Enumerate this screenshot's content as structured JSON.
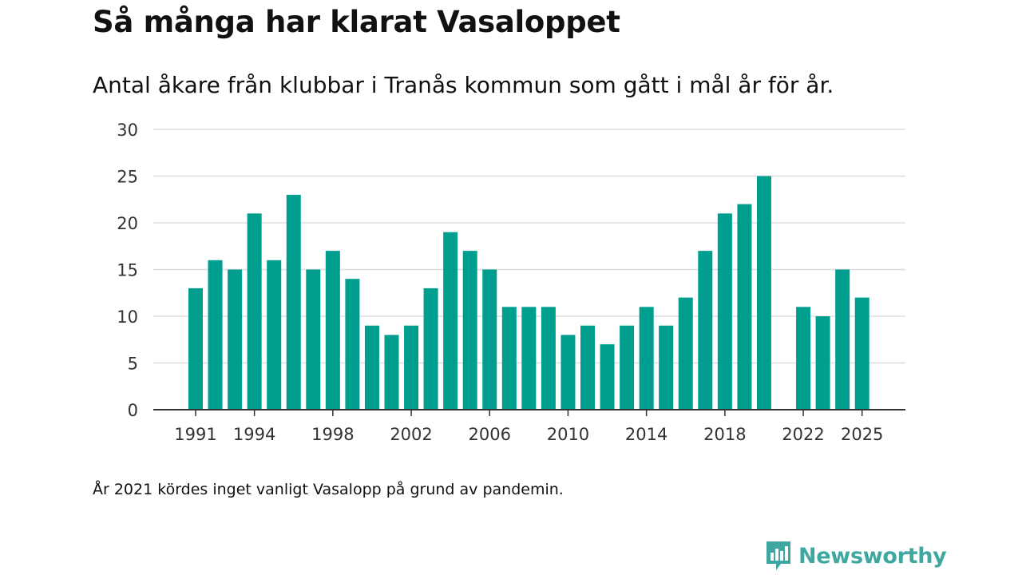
{
  "title": "Så många har klarat Vasaloppet",
  "subtitle": "Antal åkare från klubbar i Tranås kommun som gått i mål år för år.",
  "note": "År 2021 kördes inget vanligt Vasalopp på grund av pandemin.",
  "brand": {
    "name": "Newsworthy",
    "icon": "newsworthy-logo-icon",
    "color": "#3ea8a0"
  },
  "colors": {
    "bar": "#009e8f",
    "grid": "#dddddd",
    "axis": "#333333"
  },
  "chart_data": {
    "type": "bar",
    "title": "Så många har klarat Vasaloppet",
    "xlabel": "",
    "ylabel": "",
    "ylim": [
      0,
      30
    ],
    "yticks": [
      0,
      5,
      10,
      15,
      20,
      25,
      30
    ],
    "xticks": [
      1991,
      1994,
      1998,
      2002,
      2006,
      2010,
      2014,
      2018,
      2022,
      2025
    ],
    "categories": [
      1991,
      1992,
      1993,
      1994,
      1995,
      1996,
      1997,
      1998,
      1999,
      2000,
      2001,
      2002,
      2003,
      2004,
      2005,
      2006,
      2007,
      2008,
      2009,
      2010,
      2011,
      2012,
      2013,
      2014,
      2015,
      2016,
      2017,
      2018,
      2019,
      2020,
      2021,
      2022,
      2023,
      2024,
      2025
    ],
    "values": [
      13,
      16,
      15,
      21,
      16,
      23,
      15,
      17,
      14,
      9,
      8,
      9,
      13,
      19,
      17,
      15,
      11,
      11,
      11,
      8,
      9,
      7,
      9,
      11,
      9,
      12,
      17,
      21,
      22,
      25,
      null,
      11,
      10,
      15,
      12
    ],
    "grid": true,
    "legend": "none"
  }
}
